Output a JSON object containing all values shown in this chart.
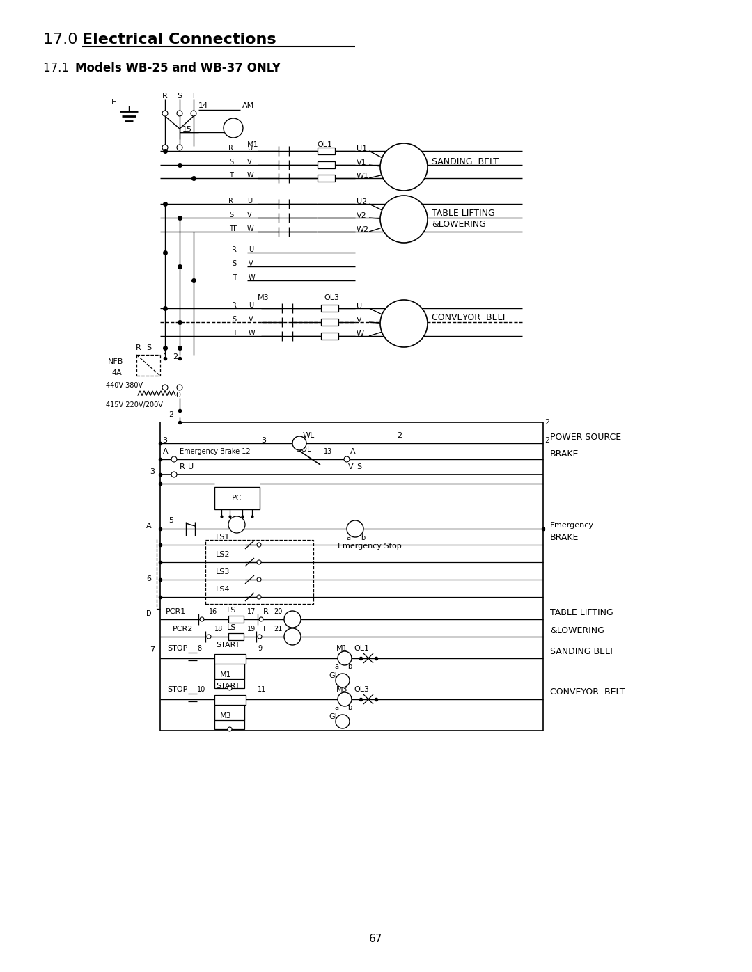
{
  "title_17_plain": "17.0  ",
  "title_17_bold": "Electrical Connections",
  "subtitle_plain": "17.1  ",
  "subtitle_bold": "Models WB-25 and WB-37 ONLY",
  "page_number": "67"
}
